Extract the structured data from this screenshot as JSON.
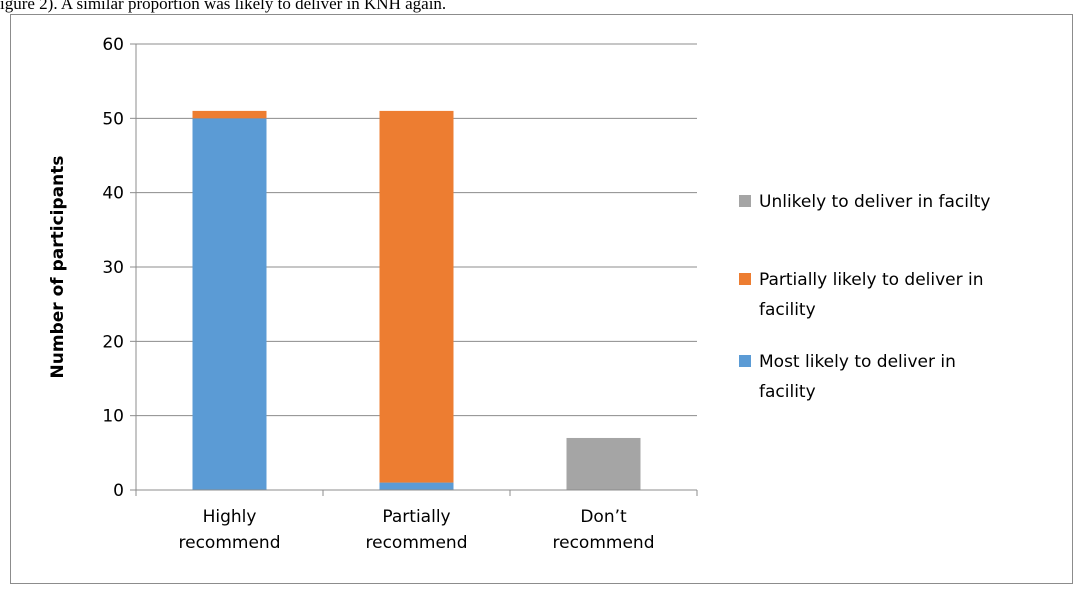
{
  "caption_fragment": "igure 2). A similar proportion was likely to deliver in KNH again.",
  "colors": {
    "most_likely": "#5b9bd5",
    "partially_likely": "#ed7d31",
    "unlikely": "#a5a5a5",
    "gridline": "#8c8c8c"
  },
  "chart_data": {
    "type": "bar",
    "stacked": true,
    "title": "",
    "xlabel": "",
    "ylabel": "Number of participants",
    "ylim": [
      0,
      60
    ],
    "yticks": [
      "0",
      "10",
      "20",
      "30",
      "40",
      "50",
      "60"
    ],
    "grid": true,
    "legend_position": "right",
    "categories": [
      [
        "Highly",
        "recommend"
      ],
      [
        "Partially",
        "recommend"
      ],
      [
        "Don’t",
        "recommend"
      ]
    ],
    "series": [
      {
        "name": "Most likely to deliver in facility",
        "name_lines": [
          "Most likely to deliver in",
          "facility"
        ],
        "color_key": "most_likely",
        "values": [
          50,
          1,
          0
        ]
      },
      {
        "name": "Partially likely to deliver in facility",
        "name_lines": [
          "Partially likely to deliver in",
          "facility"
        ],
        "color_key": "partially_likely",
        "values": [
          1,
          50,
          0
        ]
      },
      {
        "name": "Unlikely to deliver in facilty",
        "name_lines": [
          "Unlikely to deliver in facilty"
        ],
        "color_key": "unlikely",
        "values": [
          0,
          0,
          7
        ]
      }
    ],
    "legend_order": [
      2,
      1,
      0
    ]
  }
}
